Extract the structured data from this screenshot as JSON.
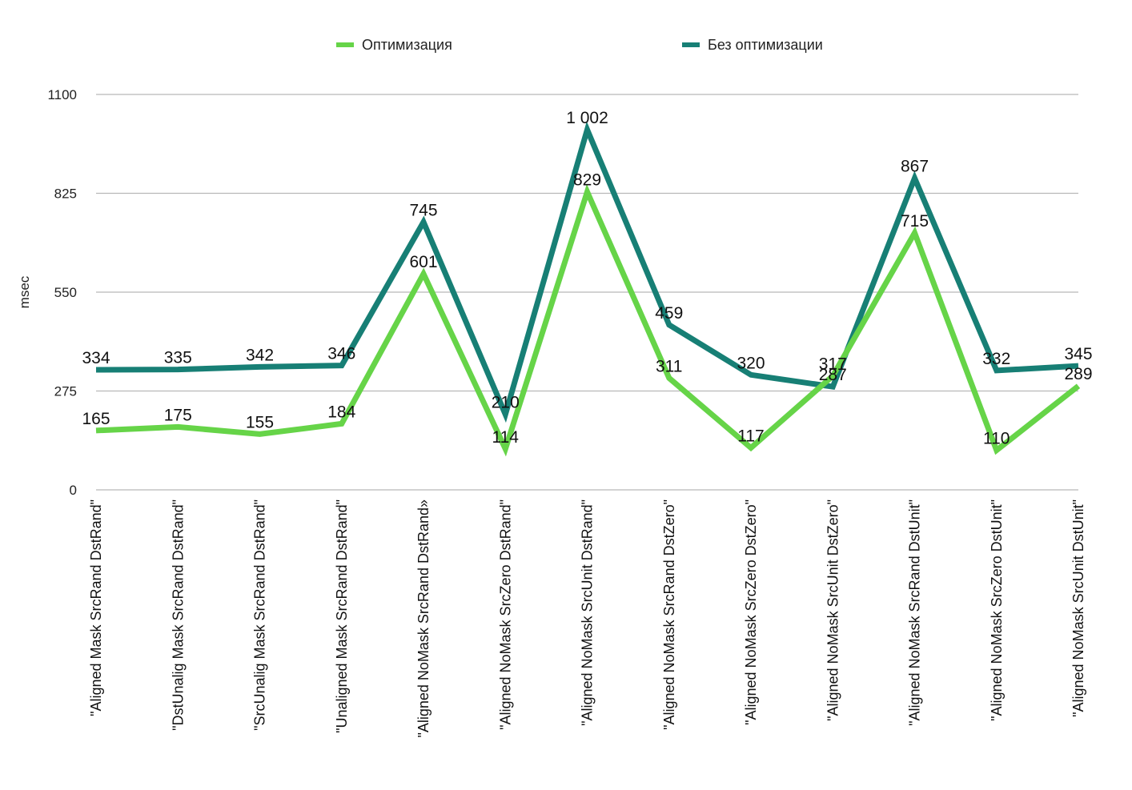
{
  "chart_data": {
    "type": "line",
    "title": "",
    "xlabel": "",
    "ylabel": "msec",
    "ylim": [
      0,
      1100
    ],
    "yticks": [
      0,
      275,
      550,
      825,
      1100
    ],
    "grid": true,
    "legend_position": "top",
    "categories": [
      "\"Aligned   Mask SrcRand DstRand\"",
      "\"DstUnalig Mask   SrcRand DstRand\"",
      "\"SrcUnalig Mask   SrcRand DstRand\"",
      "\"Unaligned Mask   SrcRand DstRand\"",
      "\"Aligned   NoMask SrcRand DstRand»",
      "\"Aligned   NoMask SrcZero DstRand\"",
      "\"Aligned   NoMask SrcUnit DstRand\"",
      "\"Aligned   NoMask SrcRand DstZero\"",
      "\"Aligned   NoMask SrcZero DstZero\"",
      "\"Aligned   NoMask SrcUnit DstZero\"",
      "\"Aligned   NoMask SrcRand DstUnit\"",
      "\"Aligned   NoMask SrcZero DstUnit\"",
      "\"Aligned   NoMask SrcUnit DstUnit\""
    ],
    "series": [
      {
        "name": "Оптимизация",
        "color": "#66d448",
        "values": [
          165,
          175,
          155,
          184,
          601,
          114,
          829,
          311,
          117,
          317,
          715,
          110,
          289
        ],
        "labels": [
          "165",
          "175",
          "155",
          "184",
          "601",
          "114",
          "829",
          "311",
          "117",
          "317",
          "715",
          "110",
          "289"
        ]
      },
      {
        "name": "Без оптимизации",
        "color": "#177f75",
        "values": [
          334,
          335,
          342,
          346,
          745,
          210,
          1002,
          459,
          320,
          287,
          867,
          332,
          345
        ],
        "labels": [
          "334",
          "335",
          "342",
          "346",
          "745",
          "210",
          "1 002",
          "459",
          "320",
          "287",
          "867",
          "332",
          "345"
        ]
      }
    ]
  }
}
